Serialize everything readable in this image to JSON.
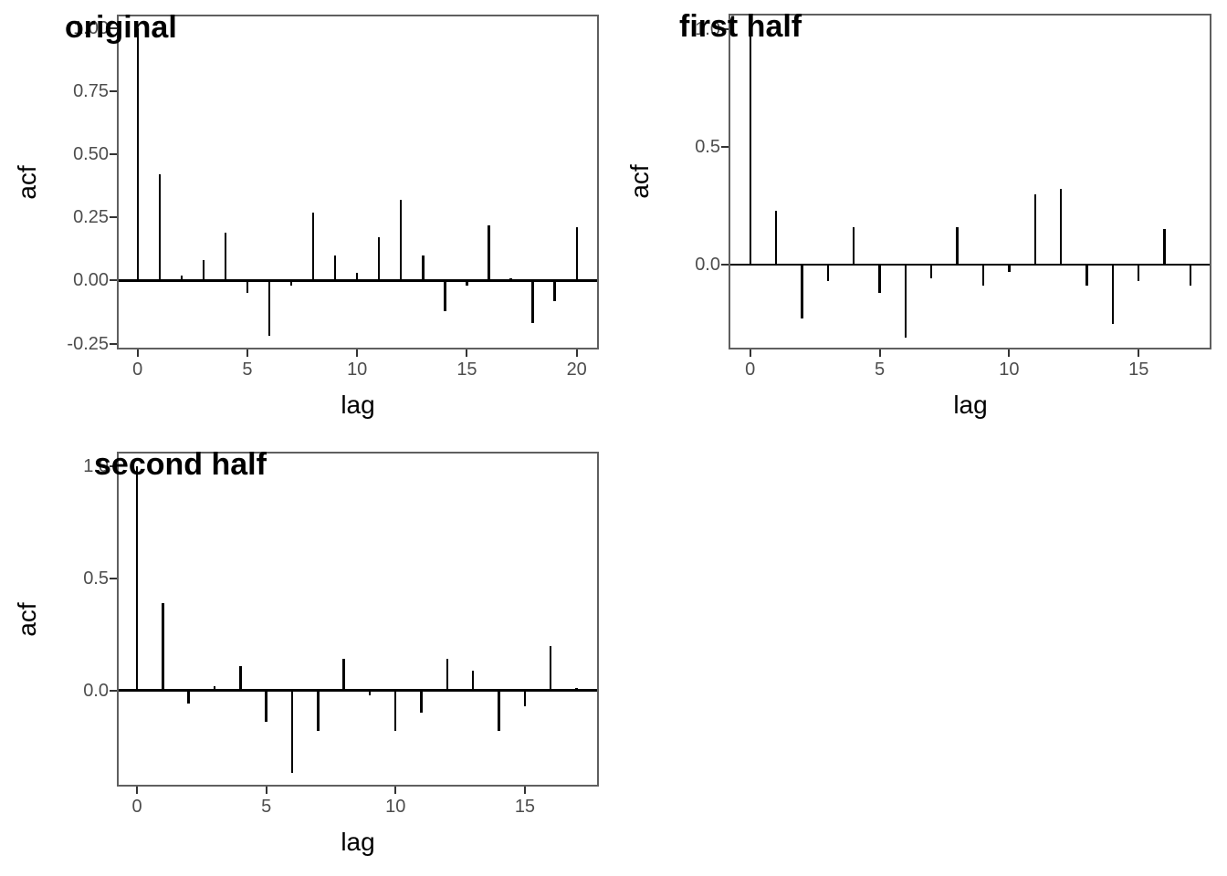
{
  "figure": {
    "background": "#ffffff",
    "colors": {
      "spike": "#000000",
      "zero_line": "#000000",
      "axis_text": "#4d4d4d",
      "tick_mark": "#333333",
      "axis_title": "#000000",
      "plot_title": "#000000",
      "panel_border": "#5f5f5f"
    }
  },
  "chart_data": [
    {
      "type": "bar",
      "style": "acf-spike-plot",
      "title": "original",
      "xlabel": "lag",
      "ylabel": "acf",
      "x": [
        0,
        1,
        2,
        3,
        4,
        5,
        6,
        7,
        8,
        9,
        10,
        11,
        12,
        13,
        14,
        15,
        16,
        17,
        18,
        19,
        20
      ],
      "values": [
        1.0,
        0.42,
        0.02,
        0.08,
        0.19,
        -0.05,
        -0.22,
        -0.02,
        0.27,
        0.1,
        0.03,
        0.17,
        0.32,
        0.1,
        -0.12,
        -0.02,
        0.22,
        0.01,
        -0.17,
        -0.08,
        0.21
      ],
      "x_ticks": [
        0,
        5,
        10,
        15,
        20
      ],
      "x_tick_labels": [
        "0",
        "5",
        "10",
        "15",
        "20"
      ],
      "y_ticks": [
        1.0,
        0.75,
        0.5,
        0.25,
        0.0,
        -0.25
      ],
      "y_tick_labels": [
        "1.00",
        "0.75",
        "0.50",
        "0.25",
        "0.00",
        "-0.25"
      ],
      "xlim": [
        -0.9,
        21.1
      ],
      "ylim": [
        -0.27,
        1.05
      ],
      "grid": false,
      "legend": "none"
    },
    {
      "type": "bar",
      "style": "acf-spike-plot",
      "title": "first half",
      "xlabel": "lag",
      "ylabel": "acf",
      "x": [
        0,
        1,
        2,
        3,
        4,
        5,
        6,
        7,
        8,
        9,
        10,
        11,
        12,
        13,
        14,
        15,
        16,
        17
      ],
      "values": [
        1.0,
        0.23,
        -0.23,
        -0.07,
        0.16,
        -0.12,
        -0.31,
        -0.06,
        0.16,
        -0.09,
        -0.03,
        0.3,
        0.32,
        -0.09,
        -0.25,
        -0.07,
        0.15,
        -0.09
      ],
      "x_ticks": [
        0,
        5,
        10,
        15
      ],
      "x_tick_labels": [
        "0",
        "5",
        "10",
        "15"
      ],
      "y_ticks": [
        1.0,
        0.5,
        0.0
      ],
      "y_tick_labels": [
        "1.0",
        "0.5",
        "0.0"
      ],
      "xlim": [
        -0.8,
        17.9
      ],
      "ylim": [
        -0.36,
        1.07
      ],
      "grid": false,
      "legend": "none"
    },
    {
      "type": "bar",
      "style": "acf-spike-plot",
      "title": "second half",
      "xlabel": "lag",
      "ylabel": "acf",
      "x": [
        0,
        1,
        2,
        3,
        4,
        5,
        6,
        7,
        8,
        9,
        10,
        11,
        12,
        13,
        14,
        15,
        16,
        17
      ],
      "values": [
        1.0,
        0.39,
        -0.06,
        0.02,
        0.11,
        -0.14,
        -0.37,
        -0.18,
        0.14,
        -0.02,
        -0.18,
        -0.1,
        0.14,
        0.09,
        -0.18,
        -0.07,
        0.2,
        0.01
      ],
      "x_ticks": [
        0,
        5,
        10,
        15
      ],
      "x_tick_labels": [
        "0",
        "5",
        "10",
        "15"
      ],
      "y_ticks": [
        1.0,
        0.5,
        0.0
      ],
      "y_tick_labels": [
        "1.0",
        "0.5",
        "0.0"
      ],
      "xlim": [
        -0.8,
        17.9
      ],
      "ylim": [
        -0.43,
        1.07
      ],
      "grid": false,
      "legend": "none"
    }
  ]
}
